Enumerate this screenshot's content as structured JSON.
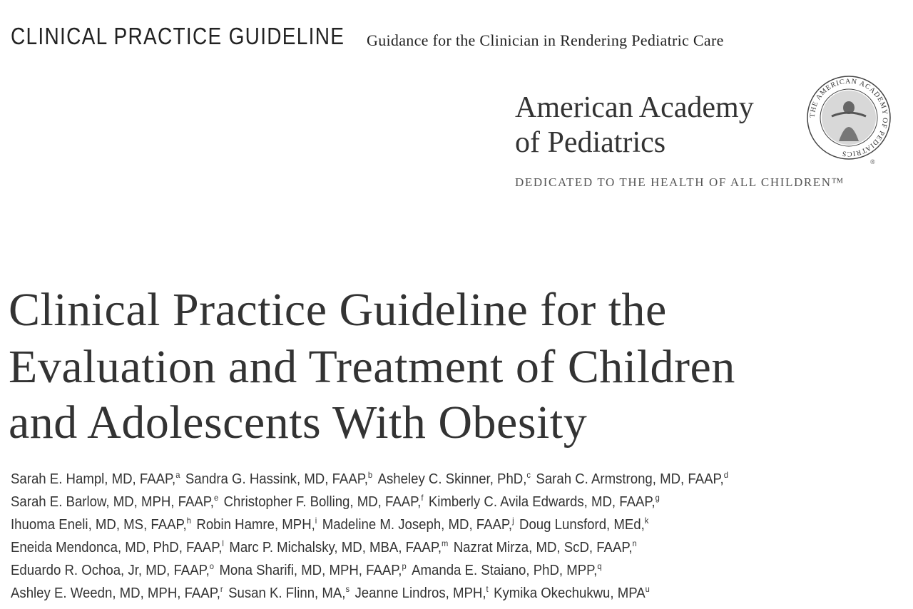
{
  "header": {
    "label": "CLINICAL PRACTICE GUIDELINE",
    "subtitle": "Guidance for the Clinician in Rendering Pediatric Care"
  },
  "logo": {
    "name_lines": [
      "American Academy",
      "of Pediatrics"
    ],
    "seal_text": "THE AMERICAN ACADEMY OF PEDIATRICS",
    "registered": "®",
    "tagline": "DEDICATED TO THE HEALTH OF ALL CHILDREN™"
  },
  "title": {
    "lines": [
      "Clinical Practice Guideline for the",
      "Evaluation and Treatment of Children",
      "and Adolescents With Obesity"
    ]
  },
  "authors": {
    "lines": [
      [
        {
          "name": "Sarah E. Hampl, MD, FAAP,",
          "sup": "a"
        },
        {
          "name": "Sandra G. Hassink, MD, FAAP,",
          "sup": "b"
        },
        {
          "name": "Asheley C. Skinner, PhD,",
          "sup": "c"
        },
        {
          "name": "Sarah C. Armstrong, MD, FAAP,",
          "sup": "d"
        }
      ],
      [
        {
          "name": "Sarah E. Barlow, MD, MPH, FAAP,",
          "sup": "e"
        },
        {
          "name": "Christopher F. Bolling, MD, FAAP,",
          "sup": "f"
        },
        {
          "name": "Kimberly C. Avila Edwards, MD, FAAP,",
          "sup": "g"
        }
      ],
      [
        {
          "name": "Ihuoma Eneli, MD, MS, FAAP,",
          "sup": "h"
        },
        {
          "name": "Robin Hamre, MPH,",
          "sup": "i"
        },
        {
          "name": "Madeline M. Joseph, MD, FAAP,",
          "sup": "j"
        },
        {
          "name": "Doug Lunsford, MEd,",
          "sup": "k"
        }
      ],
      [
        {
          "name": "Eneida Mendonca, MD, PhD, FAAP,",
          "sup": "l"
        },
        {
          "name": "Marc P. Michalsky, MD, MBA, FAAP,",
          "sup": "m"
        },
        {
          "name": "Nazrat Mirza, MD, ScD, FAAP,",
          "sup": "n"
        }
      ],
      [
        {
          "name": "Eduardo R. Ochoa, Jr, MD, FAAP,",
          "sup": "o"
        },
        {
          "name": "Mona Sharifi, MD, MPH, FAAP,",
          "sup": "p"
        },
        {
          "name": "Amanda E. Staiano, PhD, MPP,",
          "sup": "q"
        }
      ],
      [
        {
          "name": "Ashley E. Weedn, MD, MPH, FAAP,",
          "sup": "r"
        },
        {
          "name": "Susan K. Flinn, MA,",
          "sup": "s"
        },
        {
          "name": "Jeanne Lindros, MPH,",
          "sup": "t"
        },
        {
          "name": "Kymika Okechukwu, MPA",
          "sup": "u"
        }
      ]
    ]
  }
}
